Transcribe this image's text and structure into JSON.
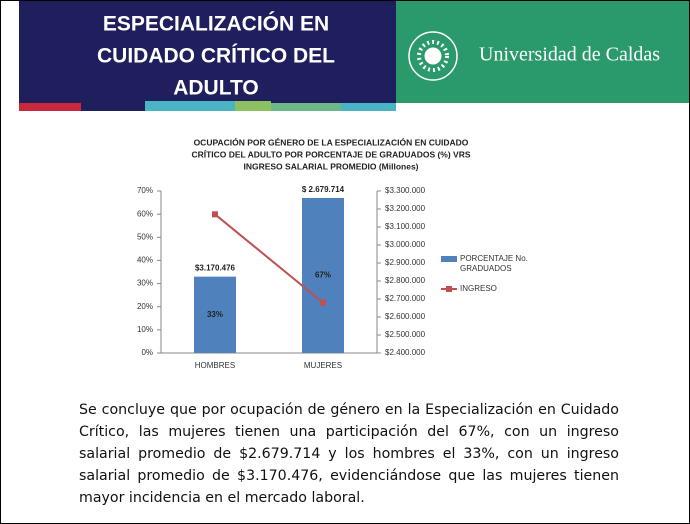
{
  "header": {
    "title": [
      "ESPECIALIZACIÓN EN",
      "CUIDADO CRÍTICO DEL",
      "ADULTO"
    ],
    "university": "Universidad de Caldas"
  },
  "chart_data": {
    "type": "bar",
    "title": [
      "OCUPACIÓN POR GÉNERO DE LA ESPECIALIZACIÓN EN CUIDADO",
      "CRÍTICO DEL ADULTO POR PORCENTAJE DE GRADUADOS (%) VRS",
      "INGRESO SALARIAL PROMEDIO (Millones)"
    ],
    "categories": [
      "HOMBRES",
      "MUJERES"
    ],
    "series": [
      {
        "name": [
          "PORCENTAJE No.",
          "GRADUADOS"
        ],
        "color": "#4f81bd",
        "values": [
          33,
          67
        ],
        "value_labels": [
          "33%",
          "67%"
        ]
      },
      {
        "name": "INGRESO",
        "color": "#c0504d",
        "type": "line",
        "axis": "y2",
        "values": [
          3170476,
          2679714
        ],
        "value_labels": [
          "$3.170.476",
          "$ 2.679.714"
        ]
      }
    ],
    "ylim": [
      0,
      70
    ],
    "yticks": [
      {
        "value": 0,
        "label": "0%"
      },
      {
        "value": 10,
        "label": "10%"
      },
      {
        "value": 20,
        "label": "20%"
      },
      {
        "value": 30,
        "label": "30%"
      },
      {
        "value": 40,
        "label": "40%"
      },
      {
        "value": 50,
        "label": "50%"
      },
      {
        "value": 60,
        "label": "60%"
      },
      {
        "value": 70,
        "label": "70%"
      }
    ],
    "y2lim": [
      2400000,
      3300000
    ],
    "y2ticks": [
      {
        "value": 2400000,
        "label": "$2.400.000"
      },
      {
        "value": 2500000,
        "label": "$2.500.000"
      },
      {
        "value": 2600000,
        "label": "$2.600.000"
      },
      {
        "value": 2700000,
        "label": "$2.700.000"
      },
      {
        "value": 2800000,
        "label": "$2.800.000"
      },
      {
        "value": 2900000,
        "label": "$2.900.000"
      },
      {
        "value": 3000000,
        "label": "$3.000.000"
      },
      {
        "value": 3100000,
        "label": "$3.100.000"
      },
      {
        "value": 3200000,
        "label": "$3.200.000"
      },
      {
        "value": 3300000,
        "label": "$3.300.000"
      }
    ],
    "legend": "right"
  },
  "paragraph": "Se concluye que por ocupación de género en la Especialización en Cuidado Crítico, las mujeres tienen una participación del 67%, con un ingreso salarial promedio de $2.679.714 y los hombres el 33%, con un ingreso salarial promedio de $3.170.476, evidenciándose que las mujeres tienen mayor incidencia en el mercado laboral."
}
